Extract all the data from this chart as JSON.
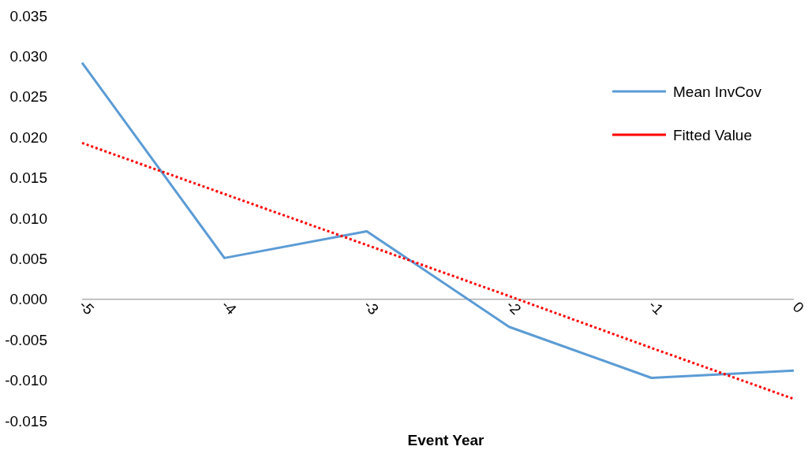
{
  "chart_data": {
    "type": "line",
    "xlabel": "Event Year",
    "categories": [
      "-5",
      "-4",
      "-3",
      "-2",
      "-1",
      "0"
    ],
    "series": [
      {
        "name": "Mean InvCov",
        "color": "#5b9bd5",
        "values": [
          0.0292,
          0.0051,
          0.0084,
          -0.0034,
          -0.0097,
          -0.0088
        ]
      },
      {
        "name": "Fitted Value",
        "color": "#ff0000",
        "line_style": "dotted",
        "values": [
          0.0193,
          0.013,
          0.0067,
          0.0004,
          -0.006,
          -0.0123
        ]
      }
    ],
    "ylim": [
      -0.015,
      0.035
    ],
    "yticks": [
      {
        "value": -0.015,
        "label": "-0.015"
      },
      {
        "value": -0.01,
        "label": "-0.010"
      },
      {
        "value": -0.005,
        "label": "-0.005"
      },
      {
        "value": 0,
        "label": "0.000"
      },
      {
        "value": 0.005,
        "label": "0.005"
      },
      {
        "value": 0.01,
        "label": "0.010"
      },
      {
        "value": 0.015,
        "label": "0.015"
      },
      {
        "value": 0.02,
        "label": "0.020"
      },
      {
        "value": 0.025,
        "label": "0.025"
      },
      {
        "value": 0.03,
        "label": "0.030"
      },
      {
        "value": 0.035,
        "label": "0.035"
      }
    ],
    "grid": false,
    "legend": "right",
    "marker": "none"
  }
}
